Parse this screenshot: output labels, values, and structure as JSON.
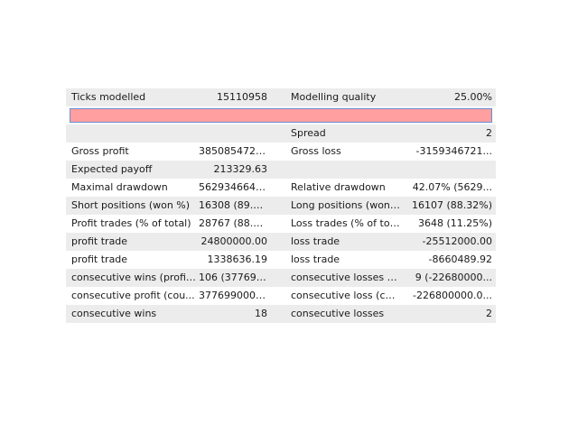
{
  "header": {
    "ticks_label": "Ticks modelled",
    "ticks_value": "15110958",
    "quality_label": "Modelling quality",
    "quality_value": "25.00%"
  },
  "quality_bar": {
    "color": "#ff9f9f",
    "border_color": "#6a8fd6"
  },
  "rows": [
    {
      "l1": "",
      "v1": "",
      "l2": "Spread",
      "v2": "2"
    },
    {
      "l1": "Gross profit",
      "v1": "38508547215...",
      "l2": "Gross loss",
      "v2": "-3159346721..."
    },
    {
      "l1": "Expected payoff",
      "v1": "213329.63",
      "l2": "",
      "v2": ""
    },
    {
      "l1": "Maximal drawdown",
      "v1": "562934664.3...",
      "l2": "Relative drawdown",
      "v2": "42.07% (5629..."
    },
    {
      "l1": "Short positions (won %)",
      "v1": "16308 (89.1...",
      "l2": "Long positions (won %)",
      "v2": "16107 (88.32%)"
    },
    {
      "l1": "Profit trades (% of total)",
      "v1": "28767 (88.7...",
      "l2": "Loss trades (% of total)",
      "v2": "3648 (11.25%)"
    },
    {
      "l1": "profit trade",
      "v1": "24800000.00",
      "l2": "loss trade",
      "v2": "-25512000.00"
    },
    {
      "l1": "profit trade",
      "v1": "1338636.19",
      "l2": "loss trade",
      "v2": "-8660489.92"
    },
    {
      "l1": "consecutive wins (profit...",
      "v1": "106 (3776990...",
      "l2": "consecutive losses (loss...",
      "v2": "9 (-22680000..."
    },
    {
      "l1": "consecutive profit (cou...",
      "v1": "377699000.0...",
      "l2": "consecutive loss (count...",
      "v2": "-226800000.0..."
    },
    {
      "l1": "consecutive wins",
      "v1": "18",
      "l2": "consecutive losses",
      "v2": "2"
    }
  ]
}
